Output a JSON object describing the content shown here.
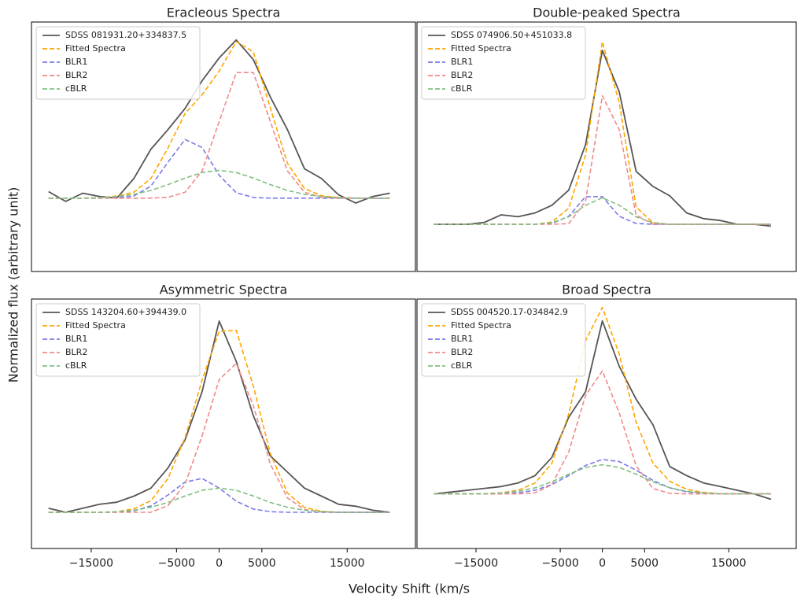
{
  "figure": {
    "xlabel": "Velocity Shift (km/s",
    "ylabel": "Normalized flux (arbitrary unit)"
  },
  "chart_data": [
    {
      "type": "line",
      "title": "Eracleous Spectra",
      "x": [
        -20000,
        -18000,
        -16000,
        -14000,
        -12000,
        -10000,
        -8000,
        -6000,
        -4000,
        -2000,
        0,
        2000,
        4000,
        6000,
        8000,
        10000,
        12000,
        14000,
        16000,
        18000,
        20000
      ],
      "xlim": [
        -22000,
        23000
      ],
      "ylim": [
        -0.45,
        1.08
      ],
      "series": [
        {
          "name": "SDSS 081931.20+334837.5",
          "color": "#555555",
          "linestyle": "solid",
          "values": [
            0.04,
            -0.02,
            0.03,
            0.01,
            0.0,
            0.12,
            0.3,
            0.42,
            0.55,
            0.72,
            0.86,
            0.97,
            0.85,
            0.62,
            0.42,
            0.18,
            0.12,
            0.02,
            -0.03,
            0.01,
            0.03
          ]
        },
        {
          "name": "Fitted Spectra",
          "color": "#ffa500",
          "linestyle": "dashed",
          "values": [
            0,
            0,
            0,
            0.003,
            0.013,
            0.036,
            0.12,
            0.308,
            0.519,
            0.634,
            0.78,
            0.96,
            0.897,
            0.553,
            0.214,
            0.059,
            0.015,
            0.003,
            0,
            0,
            0
          ]
        },
        {
          "name": "BLR1",
          "color": "#7b7bea",
          "linestyle": "dashed",
          "values": [
            0,
            0,
            0,
            0,
            0.003,
            0.013,
            0.073,
            0.22,
            0.36,
            0.31,
            0.14,
            0.033,
            0.004,
            0,
            0,
            0,
            0,
            0,
            0,
            0,
            0
          ]
        },
        {
          "name": "BLR2",
          "color": "#f08a8a",
          "linestyle": "dashed",
          "values": [
            0,
            0,
            0,
            0,
            0,
            0,
            0,
            0.005,
            0.036,
            0.167,
            0.47,
            0.77,
            0.77,
            0.47,
            0.167,
            0.036,
            0.005,
            0,
            0,
            0,
            0
          ]
        },
        {
          "name": "cBLR",
          "color": "#80c080",
          "linestyle": "dashed",
          "values": [
            0,
            0,
            0,
            0.003,
            0.01,
            0.023,
            0.047,
            0.083,
            0.123,
            0.157,
            0.17,
            0.157,
            0.123,
            0.083,
            0.047,
            0.023,
            0.01,
            0.003,
            0,
            0,
            0
          ]
        }
      ]
    },
    {
      "type": "line",
      "title": "Double-peaked Spectra",
      "x": [
        -20000,
        -18000,
        -16000,
        -14000,
        -12000,
        -10000,
        -8000,
        -6000,
        -4000,
        -2000,
        0,
        2000,
        4000,
        6000,
        8000,
        10000,
        12000,
        14000,
        16000,
        18000,
        20000
      ],
      "xlim": [
        -22000,
        23000
      ],
      "ylim": [
        -0.25,
        1.07
      ],
      "series": [
        {
          "name": "SDSS 074906.50+451033.8",
          "color": "#555555",
          "linestyle": "solid",
          "values": [
            0.0,
            0.0,
            0.0,
            0.01,
            0.05,
            0.04,
            0.06,
            0.1,
            0.18,
            0.42,
            0.92,
            0.7,
            0.28,
            0.2,
            0.15,
            0.06,
            0.03,
            0.02,
            0.0,
            0.0,
            -0.01
          ]
        },
        {
          "name": "Fitted Spectra",
          "color": "#ffa500",
          "linestyle": "dashed",
          "values": [
            0,
            0,
            0,
            0,
            0,
            0,
            0,
            0.012,
            0.084,
            0.366,
            0.966,
            0.642,
            0.091,
            0.008,
            0,
            0,
            0,
            0,
            0,
            0,
            0
          ]
        },
        {
          "name": "BLR1",
          "color": "#7b7bea",
          "linestyle": "dashed",
          "values": [
            0,
            0,
            0,
            0,
            0,
            0,
            0,
            0.004,
            0.042,
            0.146,
            0.146,
            0.042,
            0.004,
            0,
            0,
            0,
            0,
            0,
            0,
            0,
            0
          ]
        },
        {
          "name": "BLR2",
          "color": "#f08a8a",
          "linestyle": "dashed",
          "values": [
            0,
            0,
            0,
            0,
            0,
            0,
            0,
            0,
            0.003,
            0.12,
            0.68,
            0.5,
            0.048,
            0,
            0,
            0,
            0,
            0,
            0,
            0,
            0
          ]
        },
        {
          "name": "cBLR",
          "color": "#80c080",
          "linestyle": "dashed",
          "values": [
            0,
            0,
            0,
            0,
            0,
            0,
            0,
            0.008,
            0.039,
            0.1,
            0.14,
            0.1,
            0.039,
            0.008,
            0,
            0,
            0,
            0,
            0,
            0,
            0
          ]
        }
      ]
    },
    {
      "type": "line",
      "title": "Asymmetric Spectra",
      "x": [
        -20000,
        -18000,
        -16000,
        -14000,
        -12000,
        -10000,
        -8000,
        -6000,
        -4000,
        -2000,
        0,
        2000,
        4000,
        6000,
        8000,
        10000,
        12000,
        14000,
        16000,
        18000,
        20000
      ],
      "xlim": [
        -22000,
        23000
      ],
      "ylim": [
        -0.18,
        1.06
      ],
      "xticks": [
        {
          "value": -15000,
          "label": "−15000"
        },
        {
          "value": -5000,
          "label": "−5000"
        },
        0,
        5000,
        15000
      ],
      "series": [
        {
          "name": "SDSS 143204.60+394439.0",
          "color": "#555555",
          "linestyle": "solid",
          "values": [
            0.02,
            0.0,
            0.02,
            0.04,
            0.05,
            0.08,
            0.12,
            0.22,
            0.36,
            0.6,
            0.95,
            0.75,
            0.48,
            0.28,
            0.2,
            0.12,
            0.08,
            0.04,
            0.03,
            0.01,
            0.0
          ]
        },
        {
          "name": "Fitted Spectra",
          "color": "#ffa500",
          "linestyle": "dashed",
          "values": [
            0,
            0,
            0,
            0,
            0.003,
            0.017,
            0.057,
            0.168,
            0.371,
            0.657,
            0.9,
            0.904,
            0.627,
            0.292,
            0.096,
            0.024,
            0.005,
            0,
            0,
            0,
            0
          ]
        },
        {
          "name": "BLR1",
          "color": "#7b7bea",
          "linestyle": "dashed",
          "values": [
            0,
            0,
            0,
            0,
            0,
            0.007,
            0.032,
            0.086,
            0.15,
            0.168,
            0.12,
            0.055,
            0.016,
            0.003,
            0,
            0,
            0,
            0,
            0,
            0,
            0
          ]
        },
        {
          "name": "BLR2",
          "color": "#f08a8a",
          "linestyle": "dashed",
          "values": [
            0,
            0,
            0,
            0,
            0,
            0,
            0,
            0.033,
            0.14,
            0.38,
            0.66,
            0.74,
            0.53,
            0.24,
            0.071,
            0.014,
            0.002,
            0,
            0,
            0,
            0
          ]
        },
        {
          "name": "cBLR",
          "color": "#80c080",
          "linestyle": "dashed",
          "values": [
            0,
            0,
            0,
            0,
            0.003,
            0.01,
            0.025,
            0.049,
            0.081,
            0.109,
            0.12,
            0.109,
            0.081,
            0.049,
            0.025,
            0.01,
            0.003,
            0,
            0,
            0,
            0
          ]
        }
      ]
    },
    {
      "type": "line",
      "title": "Broad Spectra",
      "x": [
        -20000,
        -18000,
        -16000,
        -14000,
        -12000,
        -10000,
        -8000,
        -6000,
        -4000,
        -2000,
        0,
        2000,
        4000,
        6000,
        8000,
        10000,
        12000,
        14000,
        16000,
        18000,
        20000
      ],
      "xlim": [
        -22000,
        23000
      ],
      "ylim": [
        -0.3,
        1.07
      ],
      "xticks": [
        {
          "value": -15000,
          "label": "−15000"
        },
        {
          "value": -5000,
          "label": "−5000"
        },
        0,
        5000,
        15000
      ],
      "series": [
        {
          "name": "SDSS 004520.17-034842.9",
          "color": "#555555",
          "linestyle": "solid",
          "values": [
            0.0,
            0.01,
            0.02,
            0.03,
            0.04,
            0.06,
            0.1,
            0.2,
            0.42,
            0.56,
            0.95,
            0.7,
            0.52,
            0.38,
            0.15,
            0.1,
            0.06,
            0.04,
            0.02,
            0.0,
            -0.03
          ]
        },
        {
          "name": "Fitted Spectra",
          "color": "#ffa500",
          "linestyle": "dashed",
          "values": [
            0,
            0,
            0,
            0.001,
            0.006,
            0.02,
            0.059,
            0.167,
            0.438,
            0.841,
            1.024,
            0.767,
            0.393,
            0.169,
            0.069,
            0.025,
            0.008,
            0.001,
            0,
            0,
            0
          ]
        },
        {
          "name": "BLR1",
          "color": "#7b7bea",
          "linestyle": "dashed",
          "values": [
            0,
            0,
            0,
            0,
            0.001,
            0.006,
            0.02,
            0.051,
            0.1,
            0.156,
            0.189,
            0.177,
            0.13,
            0.074,
            0.033,
            0.011,
            0.003,
            0,
            0,
            0,
            0
          ]
        },
        {
          "name": "BLR2",
          "color": "#f08a8a",
          "linestyle": "dashed",
          "values": [
            0,
            0,
            0,
            0,
            0,
            0,
            0.006,
            0.05,
            0.23,
            0.54,
            0.675,
            0.445,
            0.155,
            0.029,
            0.003,
            0,
            0,
            0,
            0,
            0,
            0
          ]
        },
        {
          "name": "cBLR",
          "color": "#80c080",
          "linestyle": "dashed",
          "values": [
            0,
            0,
            0,
            0.001,
            0.005,
            0.014,
            0.033,
            0.066,
            0.108,
            0.145,
            0.16,
            0.145,
            0.108,
            0.066,
            0.033,
            0.014,
            0.005,
            0.001,
            0,
            0,
            0
          ]
        }
      ]
    }
  ]
}
